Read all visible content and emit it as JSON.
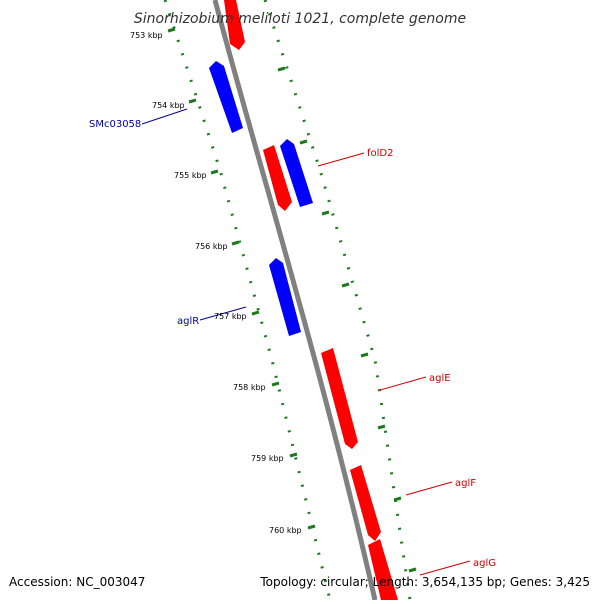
{
  "title": "Sinorhizobium meliloti 1021, complete genome",
  "accession": "Accession: NC_003047",
  "topology": "Topology: circular; Length: 3,654,135 bp; Genes: 3,425",
  "colors": {
    "forward_gene": "#ff0000",
    "reverse_gene": "#0000ff",
    "backbone": "#808080",
    "ruler": "#1f7a1f",
    "label_forward": "#cc0000",
    "label_reverse": "#000099"
  },
  "ruler_ticks": [
    {
      "label": "753 kbp"
    },
    {
      "label": "754 kbp"
    },
    {
      "label": "755 kbp"
    },
    {
      "label": "756 kbp"
    },
    {
      "label": "757 kbp"
    },
    {
      "label": "758 kbp"
    },
    {
      "label": "759 kbp"
    },
    {
      "label": "760 kbp"
    }
  ],
  "gene_labels": {
    "smc03058": "SMc03058",
    "fold2": "folD2",
    "aglr": "aglR",
    "agle": "aglE",
    "aglf": "aglF",
    "aglg": "aglG"
  }
}
